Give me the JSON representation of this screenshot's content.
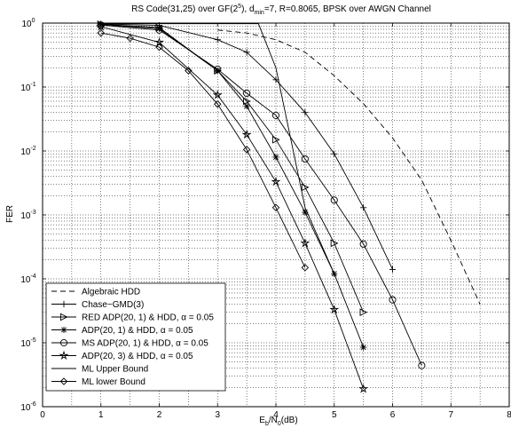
{
  "chart_data": {
    "type": "line",
    "title": {
      "main_a": "RS Code(31,25) over GF(2",
      "main_exp": "5",
      "main_b": "), d",
      "main_sub": "min",
      "main_c": "=7, R=0.8065, BPSK over AWGN Channel"
    },
    "xlabel": {
      "a": "E",
      "sub1": "b",
      "b": "/N",
      "sub2": "0",
      "c": "(dB)"
    },
    "ylabel": "FER",
    "xlim": [
      0,
      8
    ],
    "ylim_log10": [
      -6,
      0
    ],
    "yscale": "log",
    "grid": true,
    "legend_position": "bottom-left",
    "x_ticks": [
      "0",
      "1",
      "2",
      "3",
      "4",
      "5",
      "6",
      "7",
      "8"
    ],
    "y_ticks": [
      {
        "exp": 0,
        "base": "10",
        "sup": "0"
      },
      {
        "exp": -1,
        "base": "10",
        "sup": "-1"
      },
      {
        "exp": -2,
        "base": "10",
        "sup": "-2"
      },
      {
        "exp": -3,
        "base": "10",
        "sup": "-3"
      },
      {
        "exp": -4,
        "base": "10",
        "sup": "-4"
      },
      {
        "exp": -5,
        "base": "10",
        "sup": "-5"
      },
      {
        "exp": -6,
        "base": "10",
        "sup": "-6"
      }
    ],
    "series": [
      {
        "name": "Algebraic HDD",
        "line": "dashed",
        "marker": "none",
        "points": [
          [
            3,
            0.78
          ],
          [
            3.5,
            0.7
          ],
          [
            4,
            0.55
          ],
          [
            4.5,
            0.35
          ],
          [
            5,
            0.15
          ],
          [
            5.5,
            0.055
          ],
          [
            6,
            0.016
          ],
          [
            6.5,
            0.0035
          ],
          [
            7,
            0.0004
          ],
          [
            7.5,
            4e-05
          ]
        ]
      },
      {
        "name": "Chase−GMD(3)",
        "line": "solid",
        "marker": "plus",
        "points": [
          [
            1,
            0.97
          ],
          [
            2,
            0.92
          ],
          [
            3,
            0.55
          ],
          [
            3.5,
            0.35
          ],
          [
            4,
            0.13
          ],
          [
            4.5,
            0.04
          ],
          [
            5,
            0.009
          ],
          [
            5.5,
            0.0013
          ],
          [
            6,
            0.00014
          ]
        ]
      },
      {
        "name": "RED ADP(20, 1) & HDD, α = 0.05",
        "line": "solid",
        "marker": "triangle-right",
        "points": [
          [
            1,
            0.96
          ],
          [
            2,
            0.85
          ],
          [
            3,
            0.18
          ],
          [
            3.5,
            0.06
          ],
          [
            4,
            0.015
          ],
          [
            4.5,
            0.0027
          ],
          [
            5,
            0.00036
          ],
          [
            5.5,
            3e-05
          ]
        ]
      },
      {
        "name": "ADP(20, 1) & HDD, α = 0.05",
        "line": "solid",
        "marker": "asterisk",
        "points": [
          [
            1,
            0.95
          ],
          [
            2,
            0.82
          ],
          [
            3,
            0.18
          ],
          [
            3.5,
            0.05
          ],
          [
            4,
            0.008
          ],
          [
            4.5,
            0.0011
          ],
          [
            5,
            0.00012
          ],
          [
            5.5,
            8.5e-06
          ]
        ]
      },
      {
        "name": "MS ADP(20, 1) & HDD, α = 0.05",
        "line": "solid",
        "marker": "circle",
        "points": [
          [
            1,
            0.93
          ],
          [
            2,
            0.78
          ],
          [
            3,
            0.19
          ],
          [
            3.5,
            0.08
          ],
          [
            4,
            0.036
          ],
          [
            4.5,
            0.0075
          ],
          [
            5,
            0.0017
          ],
          [
            5.5,
            0.00035
          ],
          [
            6,
            4.7e-05
          ],
          [
            6.5,
            4.4e-06
          ]
        ]
      },
      {
        "name": "ADP(20, 3) & HDD, α = 0.05",
        "line": "solid",
        "marker": "star",
        "points": [
          [
            1,
            0.88
          ],
          [
            2,
            0.5
          ],
          [
            3,
            0.075
          ],
          [
            3.5,
            0.018
          ],
          [
            4,
            0.0033
          ],
          [
            4.5,
            0.00036
          ],
          [
            5,
            3.3e-05
          ],
          [
            5.5,
            1.9e-06
          ]
        ]
      },
      {
        "name": "ML Upper Bound",
        "line": "solid",
        "marker": "none",
        "points": [
          [
            1,
            0.98
          ],
          [
            2,
            0.98
          ],
          [
            3,
            0.98
          ],
          [
            3.7,
            0.98
          ],
          [
            4,
            0.2
          ],
          [
            4.5,
            0.0013
          ],
          [
            5,
            0.00012
          ]
        ]
      },
      {
        "name": "ML lower Bound",
        "line": "solid",
        "marker": "diamond",
        "points": [
          [
            1,
            0.7
          ],
          [
            1.5,
            0.58
          ],
          [
            2,
            0.42
          ],
          [
            2.5,
            0.18
          ],
          [
            3,
            0.054
          ],
          [
            3.5,
            0.0105
          ],
          [
            4,
            0.0013
          ],
          [
            4.5,
            0.00015
          ]
        ]
      }
    ]
  }
}
